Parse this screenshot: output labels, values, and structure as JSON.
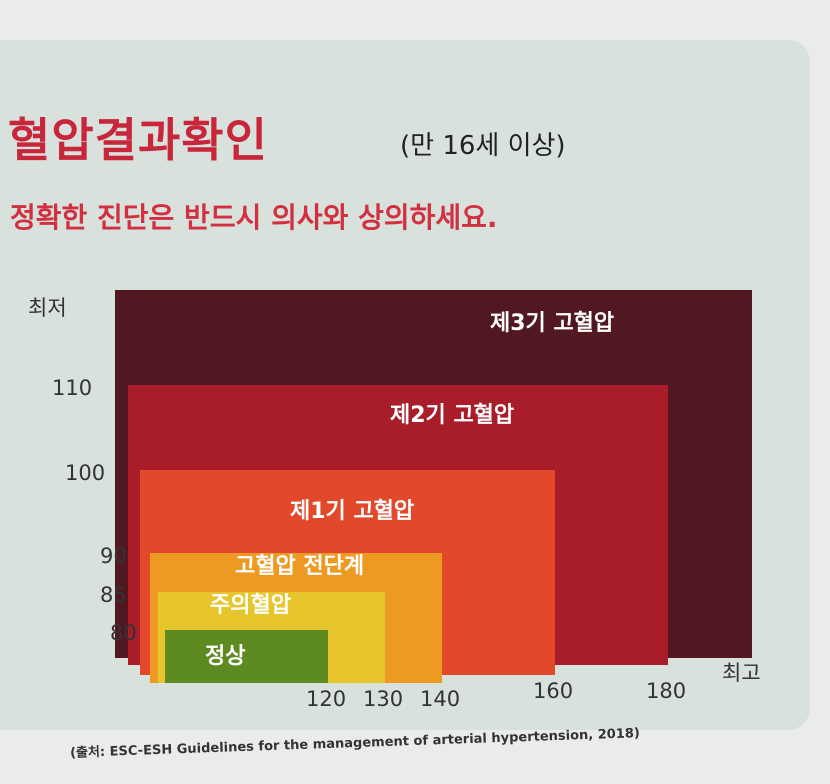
{
  "title": "혈압결과확인",
  "age_note": "(만 16세 이상)",
  "subtitle": "정확한 진단은 반드시 의사와 상의하세요.",
  "source": "(출처: ESC-ESH Guidelines for the management of arterial hypertension, 2018)",
  "chart_data": {
    "type": "nested-rectangles",
    "xlabel_max": "최고",
    "ylabel_max": "최저",
    "x_ticks": [
      "120",
      "130",
      "140",
      "160",
      "180",
      "최고"
    ],
    "y_ticks": [
      "80",
      "85",
      "90",
      "100",
      "110",
      "최저"
    ],
    "categories": [
      {
        "label": "정상",
        "systolic_max": "120",
        "diastolic_max": "80",
        "color": "#5e8a22"
      },
      {
        "label": "주의혈압",
        "systolic_max": "130",
        "diastolic_max": "85",
        "color": "#e6c62c"
      },
      {
        "label": "고혈압 전단계",
        "systolic_max": "140",
        "diastolic_max": "90",
        "color": "#ec9a22"
      },
      {
        "label": "제1기 고혈압",
        "systolic_max": "160",
        "diastolic_max": "100",
        "color": "#e2482a"
      },
      {
        "label": "제2기 고혈압",
        "systolic_max": "180",
        "diastolic_max": "110",
        "color": "#a91d2a"
      },
      {
        "label": "제3기 고혈압",
        "systolic_max": "최고",
        "diastolic_max": "최저",
        "color": "#521822"
      }
    ]
  }
}
